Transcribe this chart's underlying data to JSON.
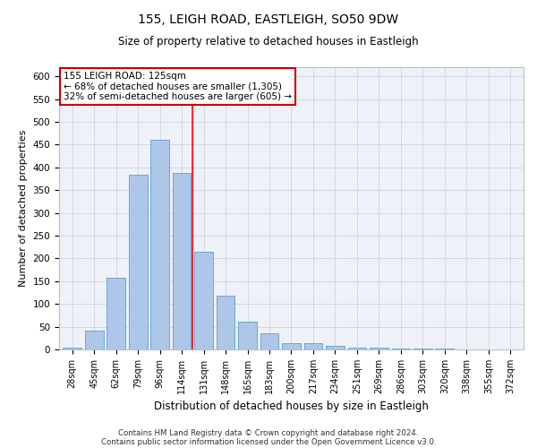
{
  "title": "155, LEIGH ROAD, EASTLEIGH, SO50 9DW",
  "subtitle": "Size of property relative to detached houses in Eastleigh",
  "xlabel": "Distribution of detached houses by size in Eastleigh",
  "ylabel": "Number of detached properties",
  "footer_line1": "Contains HM Land Registry data © Crown copyright and database right 2024.",
  "footer_line2": "Contains public sector information licensed under the Open Government Licence v3.0.",
  "categories": [
    "28sqm",
    "45sqm",
    "62sqm",
    "79sqm",
    "96sqm",
    "114sqm",
    "131sqm",
    "148sqm",
    "165sqm",
    "183sqm",
    "200sqm",
    "217sqm",
    "234sqm",
    "251sqm",
    "269sqm",
    "286sqm",
    "303sqm",
    "320sqm",
    "338sqm",
    "355sqm",
    "372sqm"
  ],
  "values": [
    3,
    42,
    158,
    383,
    460,
    388,
    215,
    118,
    62,
    35,
    14,
    13,
    7,
    4,
    3,
    2,
    1,
    1,
    0,
    0,
    0
  ],
  "bar_color": "#aec6e8",
  "bar_edge_color": "#5a9fd4",
  "red_line_x": 5.5,
  "annotation_text_line1": "155 LEIGH ROAD: 125sqm",
  "annotation_text_line2": "← 68% of detached houses are smaller (1,305)",
  "annotation_text_line3": "32% of semi-detached houses are larger (605) →",
  "annotation_box_color": "#ffffff",
  "annotation_box_edge_color": "#cc0000",
  "ylim": [
    0,
    620
  ],
  "yticks": [
    0,
    50,
    100,
    150,
    200,
    250,
    300,
    350,
    400,
    450,
    500,
    550,
    600
  ],
  "grid_color": "#d0d8e8",
  "background_color": "#eef2f8"
}
